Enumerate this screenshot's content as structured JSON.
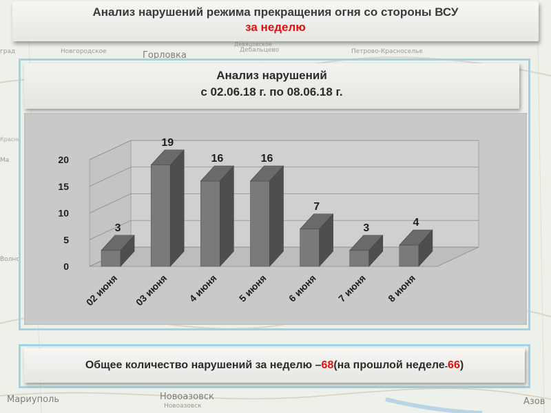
{
  "header": {
    "title": "Анализ нарушений режима прекращения огня со стороны ВСУ",
    "subtitle": "за неделю"
  },
  "chart_header": {
    "line1": "Анализ нарушений",
    "line2": "с 02.06.18 г. по 08.06.18 г."
  },
  "chart_data": {
    "type": "bar",
    "categories": [
      "02 июня",
      "03 июня",
      "4 июня",
      "5 июня",
      "6 июня",
      "7 июня",
      "8 июня"
    ],
    "values": [
      3,
      19,
      16,
      16,
      7,
      3,
      4
    ],
    "ylim": [
      0,
      20
    ],
    "yticks": [
      0,
      5,
      10,
      15,
      20
    ],
    "title": "",
    "xlabel": "",
    "ylabel": "",
    "grid": true,
    "bar_color": "#7a7a7a"
  },
  "summary": {
    "prefix": "Общее количество нарушений за неделю – ",
    "total": "68",
    "middle": " (на прошлой неделе",
    "dash": " - ",
    "previous": "66",
    "suffix": ")"
  },
  "map_labels": {
    "gorlovka": "Горловка",
    "novogorodskoe": "Новгородское",
    "debaltsevo": "Дебальцево",
    "devyatovskoe": "Девяцовское",
    "petrovo": "Петрово-Красноселье",
    "grad": "град",
    "mariupol": "Мариуполь",
    "novoazovsk": "Новоазовск",
    "novoazovsk2": "Новоазовск",
    "azov": "Азов",
    "volno": "Волно",
    "krasnoe": "Красно",
    "marinka": "Ма"
  }
}
